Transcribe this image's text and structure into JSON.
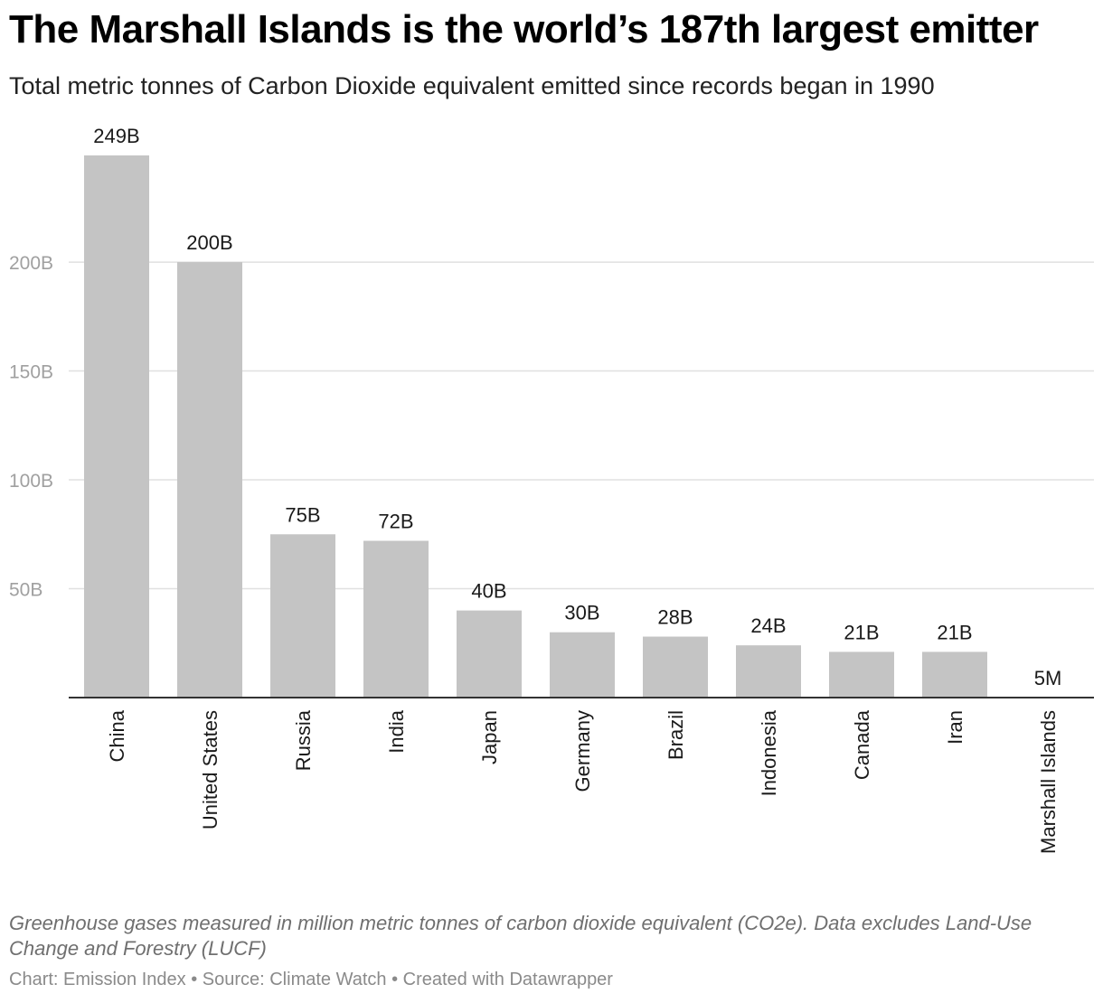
{
  "title": "The Marshall Islands is the world’s 187th largest emitter",
  "subtitle": "Total metric tonnes of Carbon Dioxide equivalent emitted since records began in 1990",
  "note": "Greenhouse gases measured in million metric tonnes of carbon dioxide equivalent (CO2e). Data excludes Land-Use Change and Forestry (LUCF)",
  "footer": "Chart: Emission Index • Source: Climate Watch • Created with Datawrapper",
  "chart_data": {
    "type": "bar",
    "title": "The Marshall Islands is the world’s 187th largest emitter",
    "subtitle": "Total metric tonnes of Carbon Dioxide equivalent emitted since records began in 1990",
    "categories": [
      "China",
      "United States",
      "Russia",
      "India",
      "Japan",
      "Germany",
      "Brazil",
      "Indonesia",
      "Canada",
      "Iran",
      "Marshall Islands"
    ],
    "values": [
      249000000000,
      200000000000,
      75000000000,
      72000000000,
      40000000000,
      30000000000,
      28000000000,
      24000000000,
      21000000000,
      21000000000,
      5000000
    ],
    "value_labels": [
      "249B",
      "200B",
      "75B",
      "72B",
      "40B",
      "30B",
      "28B",
      "24B",
      "21B",
      "21B",
      "5M"
    ],
    "yticks": [
      50000000000,
      100000000000,
      150000000000,
      200000000000
    ],
    "ytick_labels": [
      "50B",
      "100B",
      "150B",
      "200B"
    ],
    "ylim": [
      0,
      249000000000
    ],
    "grid": true,
    "bar_color": "#c4c4c4",
    "grid_color": "#e0e0e0",
    "axis_color": "#333333"
  }
}
